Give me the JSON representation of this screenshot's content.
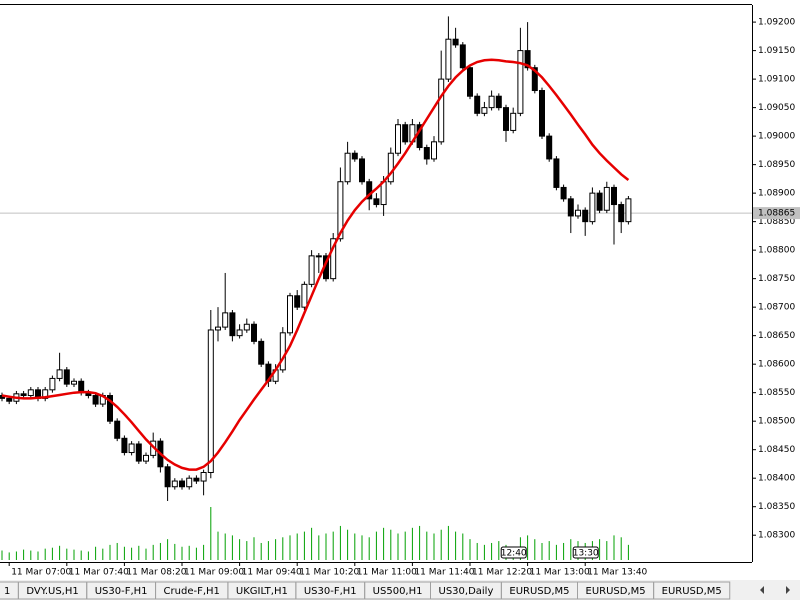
{
  "chart_data": {
    "type": "candlestick",
    "categories": [
      null,
      "11 Mar 07:00",
      null,
      null,
      null,
      null,
      null,
      null,
      null,
      "11 Mar 07:40",
      null,
      null,
      null,
      null,
      null,
      null,
      null,
      "11 Mar 08:20",
      null,
      null,
      null,
      null,
      null,
      null,
      null,
      "11 Mar 09:00",
      null,
      null,
      null,
      null,
      null,
      null,
      null,
      "11 Mar 09:40",
      null,
      null,
      null,
      null,
      null,
      null,
      null,
      "11 Mar 10:20",
      null,
      null,
      null,
      null,
      null,
      null,
      null,
      "11 Mar 11:00",
      null,
      null,
      null,
      null,
      null,
      null,
      null,
      "11 Mar 11:40",
      null,
      null,
      null,
      null,
      null,
      null,
      null,
      "11 Mar 12:20",
      null,
      null,
      null,
      null,
      null,
      null,
      null,
      "11 Mar 13:00",
      null,
      null,
      null,
      null,
      null,
      null,
      null,
      "11 Mar 13:40",
      null,
      null,
      null,
      null,
      null,
      null
    ],
    "open": [
      1.08545,
      1.0854,
      1.08535,
      1.08548,
      1.08545,
      1.08555,
      1.0854,
      1.08555,
      1.08575,
      1.0859,
      1.08565,
      1.0857,
      1.0855,
      1.08545,
      1.0853,
      1.08545,
      1.085,
      1.0847,
      1.08445,
      1.0846,
      1.0843,
      1.0844,
      1.08465,
      1.0842,
      1.08385,
      1.08395,
      1.08385,
      1.084,
      1.08395,
      1.0841,
      1.0866,
      1.08665,
      1.0869,
      1.0865,
      1.0866,
      1.0867,
      1.0864,
      1.086,
      1.0857,
      1.0859,
      1.08655,
      1.0872,
      1.087,
      1.0874,
      1.0879,
      1.0879,
      1.0875,
      1.0882,
      1.0892,
      1.0897,
      1.0896,
      1.0892,
      1.0889,
      1.0888,
      1.0892,
      1.0897,
      1.0902,
      1.0899,
      1.0902,
      1.0898,
      1.0896,
      1.0899,
      1.091,
      1.0917,
      1.0916,
      1.0912,
      1.0907,
      1.0904,
      1.0905,
      1.0907,
      1.0905,
      1.0901,
      1.0904,
      1.0915,
      1.0912,
      1.0908,
      1.09,
      1.0896,
      1.0891,
      1.0889,
      1.0886,
      1.0887,
      1.0885,
      1.089,
      1.0887,
      1.0891,
      1.0888,
      1.0885
    ],
    "high": [
      1.0855,
      1.08545,
      1.08553,
      1.08553,
      1.0856,
      1.0856,
      1.0856,
      1.0858,
      1.0862,
      1.08595,
      1.08575,
      1.08575,
      1.08555,
      1.0855,
      1.0855,
      1.0855,
      1.08505,
      1.08475,
      1.08465,
      1.08465,
      1.08445,
      1.0848,
      1.0847,
      1.08425,
      1.084,
      1.084,
      1.08405,
      1.08405,
      1.08415,
      1.08695,
      1.087,
      1.0876,
      1.08695,
      1.0867,
      1.0868,
      1.08675,
      1.08645,
      1.08605,
      1.086,
      1.08665,
      1.08725,
      1.0873,
      1.08745,
      1.088,
      1.08795,
      1.08795,
      1.0883,
      1.08945,
      1.0899,
      1.08975,
      1.08965,
      1.08925,
      1.089,
      1.0893,
      1.0898,
      1.0903,
      1.09025,
      1.0903,
      1.09025,
      1.08985,
      1.09,
      1.0915,
      1.0921,
      1.0919,
      1.09165,
      1.09125,
      1.09075,
      1.0906,
      1.0908,
      1.09075,
      1.09055,
      1.0905,
      1.0919,
      1.092,
      1.09125,
      1.09085,
      1.09005,
      1.08965,
      1.08915,
      1.08895,
      1.0888,
      1.08875,
      1.0891,
      1.08905,
      1.0892,
      1.08915,
      1.08885,
      1.08895
    ],
    "low": [
      1.08535,
      1.0853,
      1.0853,
      1.0854,
      1.0854,
      1.08535,
      1.08535,
      1.0855,
      1.0857,
      1.0856,
      1.0856,
      1.08545,
      1.0854,
      1.08525,
      1.08525,
      1.08495,
      1.08465,
      1.0844,
      1.0844,
      1.08425,
      1.08425,
      1.08435,
      1.0841,
      1.0836,
      1.0838,
      1.0838,
      1.0838,
      1.0839,
      1.0837,
      1.084,
      1.0864,
      1.0866,
      1.0864,
      1.08645,
      1.08655,
      1.08635,
      1.08595,
      1.0856,
      1.08565,
      1.08585,
      1.0865,
      1.08695,
      1.08695,
      1.08735,
      1.0876,
      1.08745,
      1.08745,
      1.08815,
      1.08915,
      1.08955,
      1.08915,
      1.0887,
      1.08875,
      1.0886,
      1.08915,
      1.08965,
      1.08985,
      1.08985,
      1.08975,
      1.0895,
      1.08955,
      1.08985,
      1.09095,
      1.09155,
      1.09115,
      1.09065,
      1.09035,
      1.09035,
      1.09045,
      1.09045,
      1.0899,
      1.09005,
      1.09035,
      1.09115,
      1.09075,
      1.08995,
      1.08955,
      1.08905,
      1.08885,
      1.0883,
      1.08855,
      1.08825,
      1.08845,
      1.08865,
      1.08865,
      1.0881,
      1.0883,
      1.08845
    ],
    "close": [
      1.0854,
      1.08535,
      1.08548,
      1.08545,
      1.08555,
      1.0854,
      1.08555,
      1.08575,
      1.0859,
      1.08565,
      1.0857,
      1.0855,
      1.08545,
      1.0853,
      1.08545,
      1.085,
      1.0847,
      1.08445,
      1.0846,
      1.0843,
      1.0844,
      1.08465,
      1.0842,
      1.08385,
      1.08395,
      1.08385,
      1.084,
      1.08395,
      1.0841,
      1.0866,
      1.08665,
      1.0869,
      1.0865,
      1.0866,
      1.0867,
      1.0864,
      1.086,
      1.0857,
      1.0859,
      1.08655,
      1.0872,
      1.087,
      1.0874,
      1.0879,
      1.0879,
      1.0875,
      1.0882,
      1.0892,
      1.0897,
      1.0896,
      1.0892,
      1.0889,
      1.0888,
      1.0892,
      1.0897,
      1.0902,
      1.0899,
      1.0902,
      1.0898,
      1.0896,
      1.0899,
      1.091,
      1.0917,
      1.0916,
      1.0912,
      1.0907,
      1.0904,
      1.0905,
      1.0907,
      1.0905,
      1.0901,
      1.0904,
      1.0915,
      1.0912,
      1.0908,
      1.09,
      1.0896,
      1.0891,
      1.0889,
      1.0886,
      1.0887,
      1.0885,
      1.089,
      1.0887,
      1.0891,
      1.0888,
      1.0885,
      1.0889
    ],
    "up_color": "#ffffff",
    "down_color": "#000000",
    "moving_average": {
      "color": "#e60000",
      "values": [
        1.08545,
        1.08543,
        1.08541,
        1.0854,
        1.0854,
        1.08541,
        1.08542,
        1.08544,
        1.08546,
        1.08548,
        1.0855,
        1.08551,
        1.08551,
        1.08549,
        1.08544,
        1.08536,
        1.08525,
        1.08512,
        1.08498,
        1.08483,
        1.08468,
        1.08455,
        1.08443,
        1.08432,
        1.08424,
        1.08418,
        1.08415,
        1.08415,
        1.0842,
        1.0843,
        1.08445,
        1.08463,
        1.08482,
        1.08502,
        1.0852,
        1.08538,
        1.08555,
        1.08572,
        1.0859,
        1.0861,
        1.08632,
        1.0866,
        1.0869,
        1.0872,
        1.0875,
        1.08778,
        1.08805,
        1.0883,
        1.08852,
        1.0887,
        1.08885,
        1.08897,
        1.08908,
        1.0892,
        1.08935,
        1.08952,
        1.0897,
        1.0899,
        1.0901,
        1.0903,
        1.0905,
        1.0907,
        1.09088,
        1.09103,
        1.09115,
        1.09124,
        1.0913,
        1.09133,
        1.09134,
        1.09133,
        1.09131,
        1.0913,
        1.09128,
        1.09124,
        1.09115,
        1.09103,
        1.09088,
        1.09072,
        1.09055,
        1.09038,
        1.0902,
        1.09003,
        1.08985,
        1.0897,
        1.08957,
        1.08945,
        1.08933,
        1.08923
      ]
    },
    "volume": {
      "color": "#00a000",
      "values": [
        10,
        8,
        9,
        11,
        10,
        9,
        12,
        13,
        15,
        12,
        11,
        10,
        9,
        14,
        12,
        16,
        18,
        14,
        13,
        15,
        12,
        16,
        18,
        22,
        17,
        14,
        15,
        13,
        16,
        56,
        30,
        28,
        26,
        22,
        20,
        24,
        18,
        20,
        22,
        24,
        26,
        28,
        30,
        34,
        26,
        28,
        30,
        36,
        32,
        28,
        26,
        24,
        30,
        34,
        32,
        28,
        30,
        34,
        36,
        30,
        28,
        32,
        36,
        30,
        28,
        22,
        18,
        16,
        18,
        20,
        16,
        14,
        24,
        26,
        22,
        18,
        20,
        16,
        18,
        22,
        20,
        18,
        20,
        22,
        20,
        26,
        24,
        16
      ]
    },
    "ylim": [
      1.08253,
      1.0923
    ],
    "yticks": [
      {
        "value": 1.083,
        "label": "1.08300"
      },
      {
        "value": 1.0835,
        "label": "1.08350"
      },
      {
        "value": 1.084,
        "label": "1.08400"
      },
      {
        "value": 1.0845,
        "label": "1.08450"
      },
      {
        "value": 1.085,
        "label": "1.08500"
      },
      {
        "value": 1.0855,
        "label": "1.08550"
      },
      {
        "value": 1.086,
        "label": "1.08600"
      },
      {
        "value": 1.0865,
        "label": "1.08650"
      },
      {
        "value": 1.087,
        "label": "1.08700"
      },
      {
        "value": 1.0875,
        "label": "1.08750"
      },
      {
        "value": 1.088,
        "label": "1.08800"
      },
      {
        "value": 1.0885,
        "label": "1.08850"
      },
      {
        "value": 1.089,
        "label": "1.08900"
      },
      {
        "value": 1.0895,
        "label": "1.08950"
      },
      {
        "value": 1.09,
        "label": "1.09000"
      },
      {
        "value": 1.0905,
        "label": "1.09050"
      },
      {
        "value": 1.091,
        "label": "1.09100"
      },
      {
        "value": 1.0915,
        "label": "1.09150"
      },
      {
        "value": 1.092,
        "label": "1.09200"
      }
    ],
    "bid_line": {
      "value": 1.08865,
      "label": "1.08865"
    },
    "time_markers": [
      {
        "index": 71,
        "label": "12:40"
      },
      {
        "index": 81,
        "label": "13:30"
      }
    ]
  },
  "tabs": [
    "1",
    "DVY.US,H1",
    "US30-F,H1",
    "Crude-F,H1",
    "UKGILT,H1",
    "US30-F,H1",
    "US500,H1",
    "US30,Daily",
    "EURUSD,M5",
    "EURUSD,M5",
    "EURUSD,M5"
  ]
}
